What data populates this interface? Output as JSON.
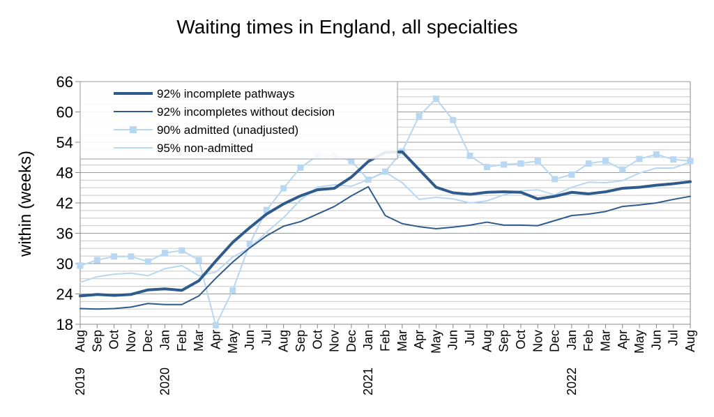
{
  "chart_data": {
    "type": "line",
    "title": "Waiting times in England, all specialties",
    "ylabel": "within  (weeks)",
    "xlabel": "",
    "ylim": [
      18,
      66
    ],
    "yticks": [
      18,
      24,
      30,
      36,
      42,
      48,
      54,
      60,
      66
    ],
    "grid": true,
    "legend_position": "top-left",
    "x": [
      "Aug",
      "Sep",
      "Oct",
      "Nov",
      "Dec",
      "Jan",
      "Feb",
      "Mar",
      "Apr",
      "May",
      "Jun",
      "Jul",
      "Aug",
      "Sep",
      "Oct",
      "Nov",
      "Dec",
      "Jan",
      "Feb",
      "Mar",
      "Apr",
      "May",
      "Jun",
      "Jul",
      "Aug",
      "Sep",
      "Oct",
      "Nov",
      "Dec",
      "Jan",
      "Feb",
      "Mar",
      "Apr",
      "May",
      "Jun",
      "Jul",
      "Aug"
    ],
    "year_labels": [
      {
        "index": 0,
        "label": "2019"
      },
      {
        "index": 5,
        "label": "2020"
      },
      {
        "index": 17,
        "label": "2021"
      },
      {
        "index": 29,
        "label": "2022"
      }
    ],
    "series": [
      {
        "name": "92% incomplete pathways",
        "color": "#2e5a8c",
        "style": "thick",
        "values": [
          23.6,
          23.9,
          23.7,
          23.9,
          24.8,
          25.0,
          24.7,
          26.6,
          30.5,
          34.2,
          37.1,
          39.8,
          41.8,
          43.4,
          44.6,
          44.9,
          47.1,
          50.2,
          52.0,
          52.1,
          48.6,
          45.1,
          44.0,
          43.7,
          44.1,
          44.2,
          44.1,
          42.8,
          43.3,
          44.1,
          43.8,
          44.2,
          44.9,
          45.1,
          45.5,
          45.8,
          46.2
        ]
      },
      {
        "name": "92% incompletes without decision",
        "color": "#2e5a8c",
        "style": "thin",
        "values": [
          21.1,
          21.0,
          21.1,
          21.4,
          22.1,
          21.9,
          21.9,
          23.6,
          27.1,
          30.3,
          33.1,
          35.5,
          37.4,
          38.3,
          39.8,
          41.3,
          43.4,
          45.2,
          39.5,
          37.9,
          37.3,
          36.9,
          37.2,
          37.6,
          38.2,
          37.6,
          37.6,
          37.5,
          38.5,
          39.5,
          39.8,
          40.3,
          41.3,
          41.6,
          42.0,
          42.7,
          43.3
        ]
      },
      {
        "name": "90% admitted (unadjusted)",
        "color": "#b7d7f2",
        "style": "markers",
        "values": [
          29.6,
          30.7,
          31.4,
          31.4,
          30.4,
          32.1,
          32.6,
          30.7,
          17.8,
          24.7,
          33.9,
          40.6,
          44.9,
          49.0,
          51.3,
          51.4,
          50.3,
          46.6,
          48.2,
          52.2,
          59.2,
          62.6,
          58.4,
          51.3,
          49.1,
          49.6,
          49.8,
          50.3,
          46.7,
          47.6,
          49.8,
          50.3,
          48.6,
          50.7,
          51.6,
          50.6,
          50.3
        ]
      },
      {
        "name": "95% non-admitted",
        "color": "#b7d7f2",
        "style": "thin",
        "values": [
          26.3,
          27.4,
          27.9,
          28.1,
          27.6,
          29.0,
          29.6,
          27.6,
          28.3,
          31.3,
          33.1,
          36.2,
          39.1,
          42.6,
          45.1,
          45.6,
          45.3,
          46.6,
          48.1,
          46.0,
          42.7,
          43.1,
          42.8,
          42.0,
          42.4,
          43.6,
          44.4,
          44.6,
          43.6,
          45.1,
          46.1,
          46.0,
          46.4,
          47.9,
          48.9,
          48.9,
          50.1
        ]
      }
    ]
  }
}
